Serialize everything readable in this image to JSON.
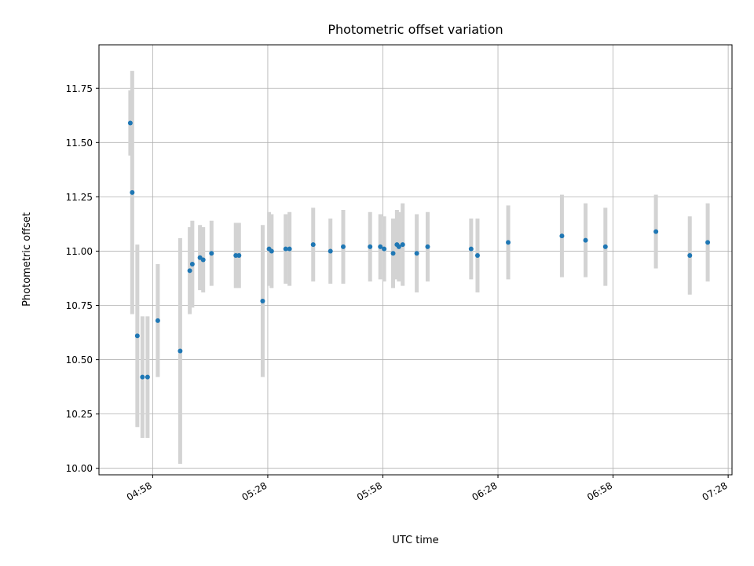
{
  "chart_data": {
    "type": "scatter",
    "title": "Photometric offset variation",
    "xlabel": "UTC time",
    "ylabel": "Photometric offset",
    "xlim": [
      "04:44",
      "07:29"
    ],
    "ylim": [
      9.97,
      11.95
    ],
    "x_ticks": [
      "04:58",
      "05:28",
      "05:58",
      "06:28",
      "06:58",
      "07:28"
    ],
    "y_ticks": [
      "10.00",
      "10.25",
      "10.50",
      "10.75",
      "11.00",
      "11.25",
      "11.50",
      "11.75"
    ],
    "grid": true,
    "point_color": "#1f77b4",
    "errorbar_color": "#d3d3d3",
    "points": [
      {
        "time": "04:52:10",
        "value": 11.59,
        "err": 0.15
      },
      {
        "time": "04:52:40",
        "value": 11.27,
        "err": 0.56
      },
      {
        "time": "04:54:00",
        "value": 10.61,
        "err": 0.42
      },
      {
        "time": "04:55:20",
        "value": 10.42,
        "err": 0.28
      },
      {
        "time": "04:56:40",
        "value": 10.42,
        "err": 0.28
      },
      {
        "time": "04:59:20",
        "value": 10.68,
        "err": 0.26
      },
      {
        "time": "05:05:10",
        "value": 10.54,
        "err": 0.52
      },
      {
        "time": "05:07:40",
        "value": 10.91,
        "err": 0.2
      },
      {
        "time": "05:08:20",
        "value": 10.94,
        "err": 0.2
      },
      {
        "time": "05:10:20",
        "value": 10.97,
        "err": 0.15
      },
      {
        "time": "05:11:10",
        "value": 10.96,
        "err": 0.15
      },
      {
        "time": "05:13:20",
        "value": 10.99,
        "err": 0.15
      },
      {
        "time": "05:19:40",
        "value": 10.98,
        "err": 0.15
      },
      {
        "time": "05:20:30",
        "value": 10.98,
        "err": 0.15
      },
      {
        "time": "05:26:40",
        "value": 10.77,
        "err": 0.35
      },
      {
        "time": "05:28:20",
        "value": 11.01,
        "err": 0.17
      },
      {
        "time": "05:29:00",
        "value": 11.0,
        "err": 0.17
      },
      {
        "time": "05:32:40",
        "value": 11.01,
        "err": 0.16
      },
      {
        "time": "05:33:40",
        "value": 11.01,
        "err": 0.17
      },
      {
        "time": "05:39:50",
        "value": 11.03,
        "err": 0.17
      },
      {
        "time": "05:44:20",
        "value": 11.0,
        "err": 0.15
      },
      {
        "time": "05:47:40",
        "value": 11.02,
        "err": 0.17
      },
      {
        "time": "05:54:40",
        "value": 11.02,
        "err": 0.16
      },
      {
        "time": "05:57:20",
        "value": 11.02,
        "err": 0.15
      },
      {
        "time": "05:58:20",
        "value": 11.01,
        "err": 0.15
      },
      {
        "time": "06:00:40",
        "value": 10.99,
        "err": 0.16
      },
      {
        "time": "06:01:40",
        "value": 11.03,
        "err": 0.16
      },
      {
        "time": "06:02:10",
        "value": 11.02,
        "err": 0.16
      },
      {
        "time": "06:03:10",
        "value": 11.03,
        "err": 0.19
      },
      {
        "time": "06:06:50",
        "value": 10.99,
        "err": 0.18
      },
      {
        "time": "06:09:40",
        "value": 11.02,
        "err": 0.16
      },
      {
        "time": "06:21:00",
        "value": 11.01,
        "err": 0.14
      },
      {
        "time": "06:22:40",
        "value": 10.98,
        "err": 0.17
      },
      {
        "time": "06:30:40",
        "value": 11.04,
        "err": 0.17
      },
      {
        "time": "06:44:40",
        "value": 11.07,
        "err": 0.19
      },
      {
        "time": "06:50:50",
        "value": 11.05,
        "err": 0.17
      },
      {
        "time": "06:56:00",
        "value": 11.02,
        "err": 0.18
      },
      {
        "time": "07:09:10",
        "value": 11.09,
        "err": 0.17
      },
      {
        "time": "07:18:00",
        "value": 10.98,
        "err": 0.18
      },
      {
        "time": "07:22:40",
        "value": 11.04,
        "err": 0.18
      }
    ]
  }
}
